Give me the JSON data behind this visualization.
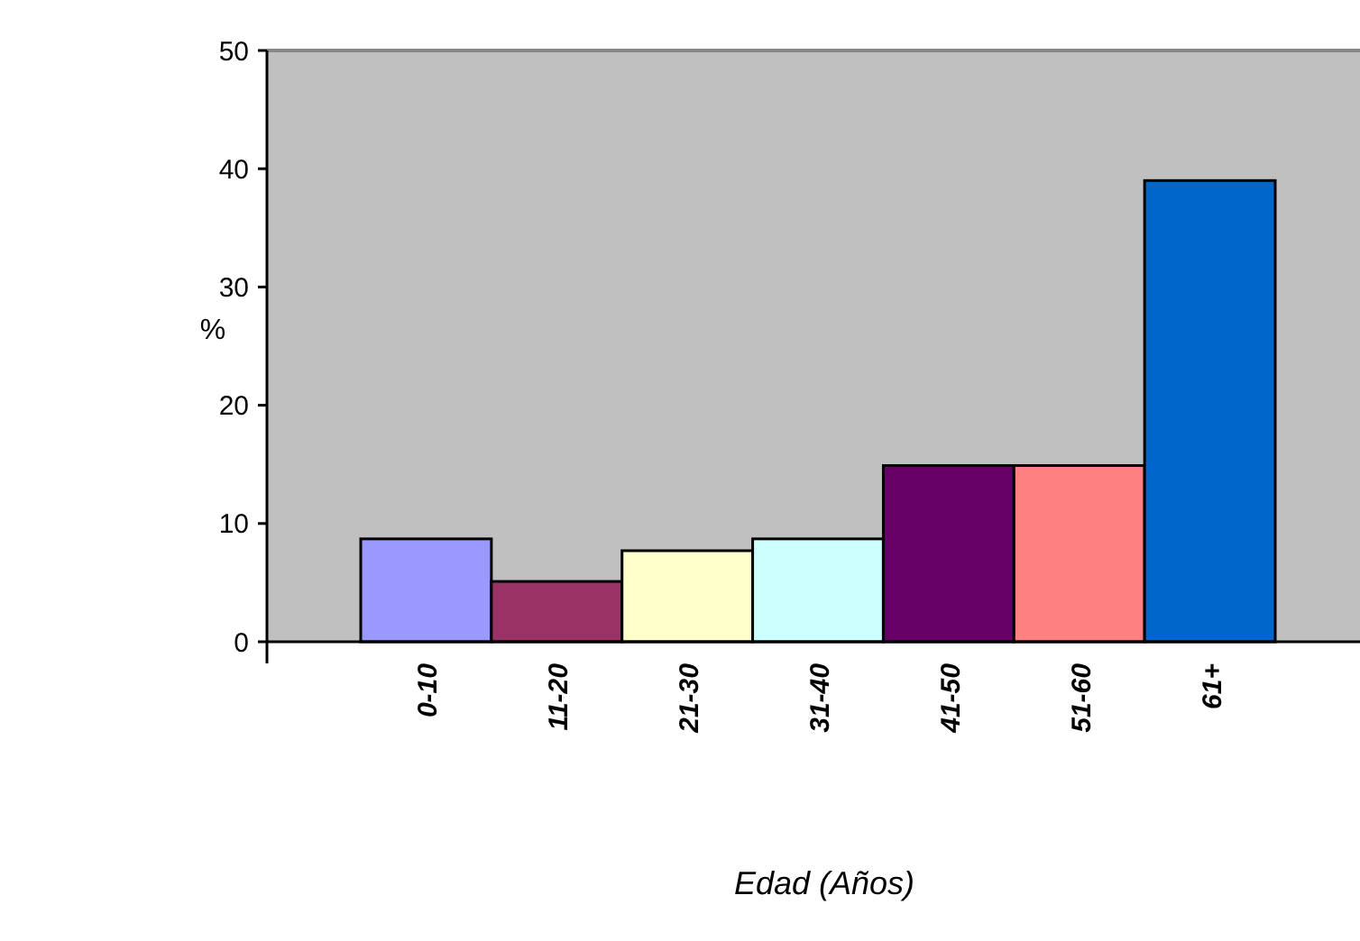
{
  "chart_data": {
    "type": "bar",
    "xlabel": "Edad (Años)",
    "ylabel": "%",
    "categories": [
      "0-10",
      "11-20",
      "21-30",
      "31-40",
      "41-50",
      "51-60",
      "61+"
    ],
    "values": [
      8.7,
      5.1,
      7.7,
      8.7,
      14.9,
      14.9,
      39
    ],
    "colors": [
      "#9999ff",
      "#993366",
      "#ffffcc",
      "#ccffff",
      "#660066",
      "#ff8080",
      "#0066cc"
    ],
    "ylim": [
      0,
      50
    ],
    "yticks": [
      0,
      10,
      20,
      30,
      40,
      50
    ],
    "grid": false
  }
}
